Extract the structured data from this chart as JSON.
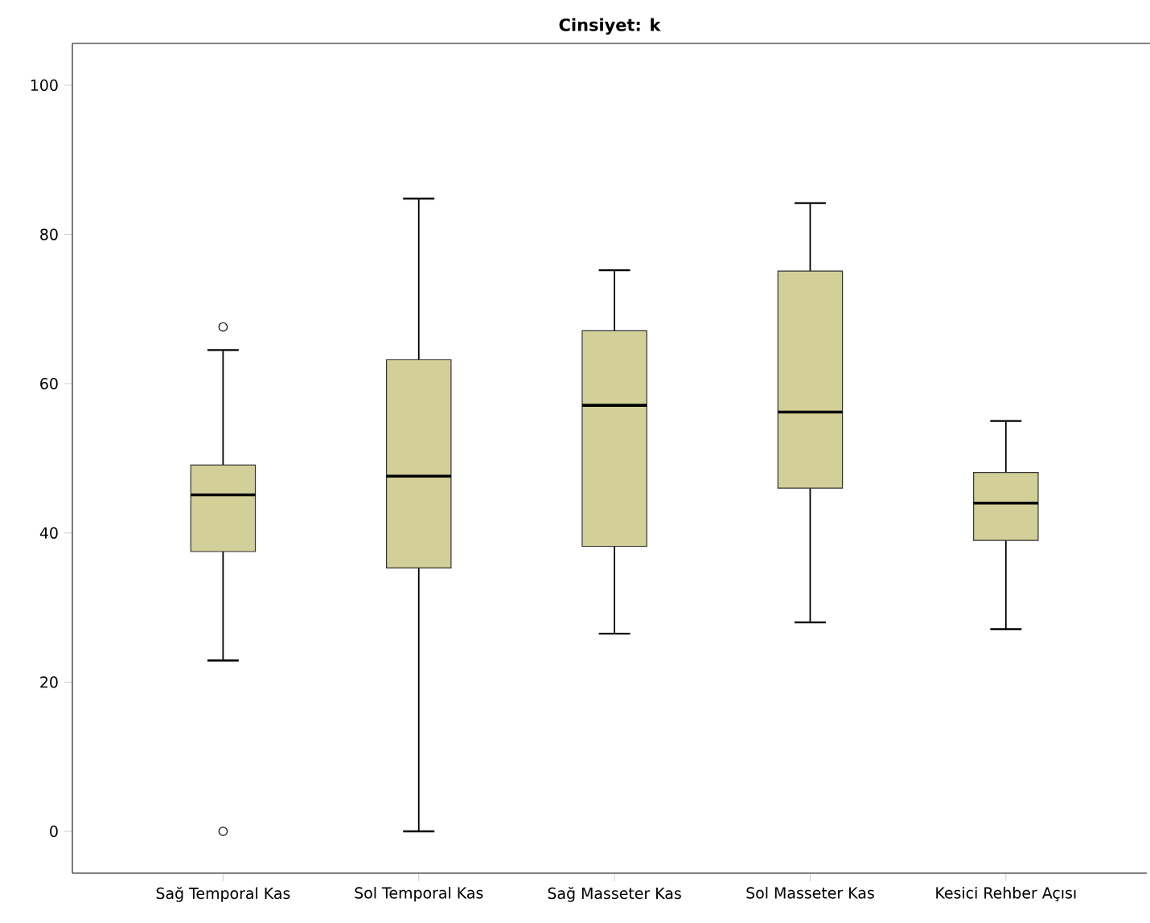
{
  "chart_data": {
    "type": "box",
    "title": "Cinsiyet: k",
    "categories": [
      "Sağ Temporal Kas",
      "Sol Temporal Kas",
      "Sağ Masseter Kas",
      "Sol Masseter Kas",
      "Kesici Rehber Açısı"
    ],
    "boxes": [
      {
        "low": 22.9,
        "q1": 37.5,
        "median": 45.1,
        "q3": 49.1,
        "high": 64.5,
        "outliers": [
          67.6,
          0
        ]
      },
      {
        "low": 0,
        "q1": 35.3,
        "median": 47.6,
        "q3": 63.2,
        "high": 84.8
      },
      {
        "low": 26.5,
        "q1": 38.2,
        "median": 57.1,
        "q3": 67.1,
        "high": 75.2
      },
      {
        "low": 28.0,
        "q1": 46.0,
        "median": 56.2,
        "q3": 75.1,
        "high": 84.2
      },
      {
        "low": 27.1,
        "q1": 39.0,
        "median": 44.0,
        "q3": 48.1,
        "high": 55.0
      }
    ],
    "color": "#d3cf98",
    "ylim": [
      -5.6,
      105.6
    ],
    "yticks": [
      0,
      20,
      40,
      60,
      80,
      100
    ],
    "marker": "circle"
  }
}
